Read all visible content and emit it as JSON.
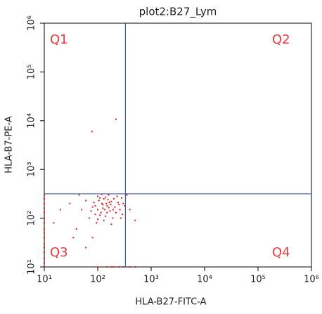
{
  "chart_data": {
    "type": "scatter",
    "title": "plot2:B27_Lym",
    "x_label": "HLA-B27-FITC-A",
    "y_label": "HLA-B7-PE-A",
    "log_x": true,
    "log_y": true,
    "xlim": [
      10,
      1000000
    ],
    "ylim": [
      10,
      1000000
    ],
    "xticks": [
      {
        "value": 10,
        "label": "10¹"
      },
      {
        "value": 100,
        "label": "10²"
      },
      {
        "value": 1000,
        "label": "10³"
      },
      {
        "value": 10000,
        "label": "10⁴"
      },
      {
        "value": 100000,
        "label": "10⁵"
      },
      {
        "value": 1000000,
        "label": "10⁶"
      }
    ],
    "yticks": [
      {
        "value": 10,
        "label": "10¹"
      },
      {
        "value": 100,
        "label": "10²"
      },
      {
        "value": 1000,
        "label": "10³"
      },
      {
        "value": 10000,
        "label": "10⁴"
      },
      {
        "value": 100000,
        "label": "10⁵"
      },
      {
        "value": 1000000,
        "label": "10⁶"
      }
    ],
    "gates": {
      "x": 330,
      "y": 316,
      "color": "#3a5fb0"
    },
    "quadrants": [
      "Q1",
      "Q2",
      "Q3",
      "Q4"
    ],
    "quadrant_color": "#e8383a",
    "series": [
      {
        "color": "#e0191b",
        "x": [
          100,
          120,
          150,
          90,
          200,
          130,
          170,
          110,
          250,
          80,
          140,
          180,
          95,
          220,
          160,
          75,
          300,
          125,
          190,
          105,
          140,
          260,
          85,
          115,
          175,
          230,
          70,
          135,
          155,
          210,
          100,
          120,
          290,
          165,
          90,
          145,
          280,
          110,
          195,
          60,
          320,
          130,
          50,
          240,
          150,
          180,
          100,
          270,
          125,
          160,
          10,
          10,
          10,
          10,
          10,
          10,
          10,
          10,
          10,
          10,
          10,
          10,
          10,
          10,
          10,
          100,
          150,
          200,
          300,
          400,
          500,
          250,
          180,
          78,
          219,
          40,
          30,
          20,
          45,
          35,
          60,
          80,
          400,
          500,
          350,
          15
        ],
        "y": [
          150,
          200,
          180,
          120,
          250,
          90,
          140,
          260,
          190,
          170,
          110,
          220,
          80,
          130,
          300,
          140,
          200,
          160,
          100,
          230,
          270,
          150,
          210,
          130,
          190,
          280,
          100,
          150,
          240,
          170,
          95,
          310,
          120,
          210,
          180,
          200,
          260,
          115,
          150,
          230,
          180,
          250,
          150,
          210,
          130,
          75,
          280,
          100,
          190,
          165,
          12,
          15,
          20,
          25,
          30,
          40,
          50,
          60,
          80,
          100,
          130,
          160,
          200,
          250,
          300,
          10,
          10,
          10,
          10,
          10,
          10,
          10,
          10,
          6000,
          10700,
          60,
          200,
          150,
          300,
          40,
          25,
          40,
          150,
          90,
          300,
          80
        ]
      }
    ]
  }
}
